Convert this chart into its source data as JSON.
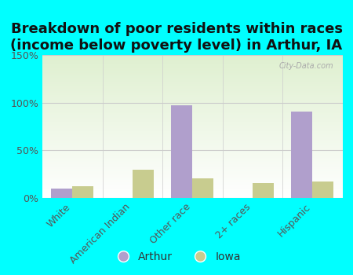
{
  "title": "Breakdown of poor residents within races\n(income below poverty level) in Arthur, IA",
  "categories": [
    "White",
    "American Indian",
    "Other race",
    "2+ races",
    "Hispanic"
  ],
  "arthur_values": [
    10,
    0,
    97,
    0,
    91
  ],
  "iowa_values": [
    12,
    30,
    21,
    16,
    17
  ],
  "arthur_color": "#b09fcc",
  "iowa_color": "#c8cc8f",
  "background_color": "#00ffff",
  "plot_bg_top": "#dff0d0",
  "plot_bg_bottom": "#ffffff",
  "ylim": [
    0,
    150
  ],
  "yticks": [
    0,
    50,
    100,
    150
  ],
  "ytick_labels": [
    "0%",
    "50%",
    "100%",
    "150%"
  ],
  "bar_width": 0.35,
  "title_fontsize": 13,
  "tick_fontsize": 9,
  "legend_fontsize": 10,
  "watermark": "City-Data.com"
}
